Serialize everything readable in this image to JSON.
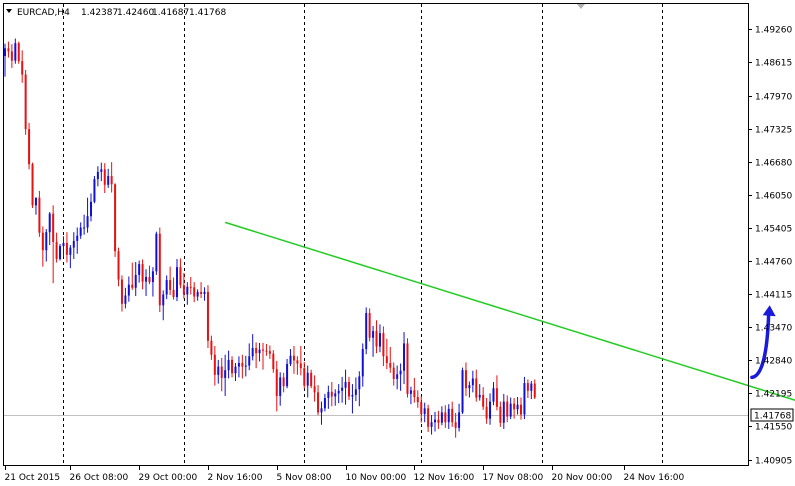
{
  "header": {
    "symbol": "EURCAD,H4",
    "open": "1.42387",
    "high": "1.42460",
    "low": "1.41687",
    "close": "1.41768"
  },
  "colors": {
    "bull": "#1010d0",
    "bear": "#e81010",
    "trendline": "#22cc22",
    "arrow": "#1a1adc",
    "price_line": "#c0c0c0",
    "grid": "#000000",
    "current_tag_bg": "#ffffff"
  },
  "chart_data": {
    "type": "candlestick",
    "symbol": "EURCAD",
    "timeframe": "H4",
    "ylim": [
      1.4078,
      1.4975
    ],
    "y_ticks": [
      "1.49260",
      "1.48615",
      "1.47970",
      "1.47325",
      "1.46680",
      "1.46050",
      "1.45405",
      "1.44760",
      "1.44115",
      "1.43470",
      "1.42840",
      "1.42195",
      "1.41550",
      "1.40905"
    ],
    "y_tick_values": [
      1.4926,
      1.48615,
      1.4797,
      1.47325,
      1.4668,
      1.4605,
      1.45405,
      1.4476,
      1.44115,
      1.4347,
      1.4284,
      1.42195,
      1.4155,
      1.40905
    ],
    "x_ticks": [
      "21 Oct 2015",
      "26 Oct 08:00",
      "29 Oct 00:00",
      "2 Nov 16:00",
      "5 Nov 08:00",
      "10 Nov 00:00",
      "12 Nov 16:00",
      "17 Nov 08:00",
      "20 Nov 00:00",
      "24 Nov 16:00"
    ],
    "x_tick_bar_index": [
      0,
      19,
      39,
      59,
      79,
      99,
      119,
      139,
      159,
      180
    ],
    "vertical_grid_bar_index": [
      17,
      52,
      87,
      121,
      156,
      191
    ],
    "current_price": 1.41768,
    "current_price_label": "1.41768",
    "bars": [
      [
        1.4874,
        1.4898,
        1.4834,
        1.4889
      ],
      [
        1.4889,
        1.4902,
        1.4871,
        1.4883
      ],
      [
        1.4883,
        1.4897,
        1.4851,
        1.4865
      ],
      [
        1.4865,
        1.4908,
        1.4859,
        1.4899
      ],
      [
        1.4899,
        1.4902,
        1.4859,
        1.4864
      ],
      [
        1.4864,
        1.4885,
        1.4822,
        1.4838
      ],
      [
        1.4838,
        1.4847,
        1.4721,
        1.4732
      ],
      [
        1.4732,
        1.4744,
        1.4654,
        1.4664
      ],
      [
        1.4664,
        1.4667,
        1.4579,
        1.4584
      ],
      [
        1.4584,
        1.4599,
        1.4566,
        1.4599
      ],
      [
        1.4599,
        1.4612,
        1.4523,
        1.4531
      ],
      [
        1.4531,
        1.4543,
        1.4465,
        1.4497
      ],
      [
        1.4497,
        1.4538,
        1.4475,
        1.4532
      ],
      [
        1.4532,
        1.4571,
        1.4507,
        1.4568
      ],
      [
        1.4568,
        1.4584,
        1.4433,
        1.4513
      ],
      [
        1.4513,
        1.4531,
        1.4473,
        1.448
      ],
      [
        1.448,
        1.4509,
        1.4477,
        1.4505
      ],
      [
        1.4505,
        1.4524,
        1.4484,
        1.4511
      ],
      [
        1.4511,
        1.4532,
        1.4473,
        1.4488
      ],
      [
        1.4488,
        1.4507,
        1.4462,
        1.4502
      ],
      [
        1.4502,
        1.4532,
        1.448,
        1.4515
      ],
      [
        1.4515,
        1.4541,
        1.449,
        1.4525
      ],
      [
        1.4525,
        1.4551,
        1.4519,
        1.4541
      ],
      [
        1.4541,
        1.4566,
        1.4527,
        1.4541
      ],
      [
        1.4541,
        1.4599,
        1.4531,
        1.4563
      ],
      [
        1.4563,
        1.4607,
        1.4553,
        1.4591
      ],
      [
        1.4591,
        1.4641,
        1.4588,
        1.4635
      ],
      [
        1.4635,
        1.466,
        1.4621,
        1.4649
      ],
      [
        1.4649,
        1.4667,
        1.4631,
        1.4654
      ],
      [
        1.4654,
        1.4666,
        1.4608,
        1.4624
      ],
      [
        1.4624,
        1.4655,
        1.4618,
        1.4641
      ],
      [
        1.4641,
        1.4668,
        1.4609,
        1.4625
      ],
      [
        1.4625,
        1.4627,
        1.4484,
        1.4495
      ],
      [
        1.4495,
        1.4502,
        1.4427,
        1.444
      ],
      [
        1.444,
        1.4448,
        1.4378,
        1.4393
      ],
      [
        1.4393,
        1.4424,
        1.4384,
        1.4409
      ],
      [
        1.4409,
        1.4446,
        1.4397,
        1.443
      ],
      [
        1.443,
        1.4473,
        1.442,
        1.4424
      ],
      [
        1.4424,
        1.4474,
        1.4408,
        1.4449
      ],
      [
        1.4449,
        1.4477,
        1.4434,
        1.447
      ],
      [
        1.447,
        1.4479,
        1.4421,
        1.4436
      ],
      [
        1.4436,
        1.446,
        1.4408,
        1.4445
      ],
      [
        1.4445,
        1.4467,
        1.4431,
        1.4435
      ],
      [
        1.4435,
        1.4464,
        1.4407,
        1.4456
      ],
      [
        1.4456,
        1.4533,
        1.4449,
        1.4529
      ],
      [
        1.4529,
        1.4541,
        1.4377,
        1.439
      ],
      [
        1.439,
        1.4419,
        1.4361,
        1.4411
      ],
      [
        1.4411,
        1.4448,
        1.4402,
        1.4439
      ],
      [
        1.4439,
        1.4465,
        1.441,
        1.442
      ],
      [
        1.442,
        1.4444,
        1.4401,
        1.4406
      ],
      [
        1.4406,
        1.448,
        1.4398,
        1.4464
      ],
      [
        1.4464,
        1.4481,
        1.4423,
        1.4429
      ],
      [
        1.4429,
        1.4453,
        1.4403,
        1.4411
      ],
      [
        1.4411,
        1.4435,
        1.4391,
        1.4426
      ],
      [
        1.4426,
        1.4445,
        1.4411,
        1.4425
      ],
      [
        1.4425,
        1.4435,
        1.4396,
        1.4407
      ],
      [
        1.4407,
        1.4421,
        1.4399,
        1.4416
      ],
      [
        1.4416,
        1.4435,
        1.4404,
        1.4412
      ],
      [
        1.4412,
        1.4425,
        1.4399,
        1.4416
      ],
      [
        1.4416,
        1.4429,
        1.4307,
        1.4321
      ],
      [
        1.4321,
        1.4331,
        1.4284,
        1.4294
      ],
      [
        1.4294,
        1.4311,
        1.4234,
        1.4255
      ],
      [
        1.4255,
        1.4284,
        1.4238,
        1.4271
      ],
      [
        1.4271,
        1.4288,
        1.4223,
        1.4249
      ],
      [
        1.4249,
        1.4294,
        1.4214,
        1.4264
      ],
      [
        1.4264,
        1.4302,
        1.4248,
        1.4284
      ],
      [
        1.4284,
        1.4291,
        1.425,
        1.4258
      ],
      [
        1.4258,
        1.4278,
        1.4243,
        1.4271
      ],
      [
        1.4271,
        1.4291,
        1.425,
        1.4278
      ],
      [
        1.4278,
        1.4294,
        1.4248,
        1.4271
      ],
      [
        1.4271,
        1.4292,
        1.4252,
        1.4273
      ],
      [
        1.4273,
        1.4316,
        1.4264,
        1.4291
      ],
      [
        1.4291,
        1.4334,
        1.4283,
        1.4307
      ],
      [
        1.4307,
        1.4318,
        1.4268,
        1.4297
      ],
      [
        1.4297,
        1.4317,
        1.4281,
        1.4304
      ],
      [
        1.4304,
        1.4317,
        1.4265,
        1.4302
      ],
      [
        1.4302,
        1.4315,
        1.4292,
        1.4301
      ],
      [
        1.4301,
        1.4312,
        1.4286,
        1.4296
      ],
      [
        1.4296,
        1.4303,
        1.4259,
        1.4266
      ],
      [
        1.4266,
        1.4282,
        1.4184,
        1.4214
      ],
      [
        1.4214,
        1.426,
        1.4195,
        1.425
      ],
      [
        1.425,
        1.4259,
        1.4221,
        1.4233
      ],
      [
        1.4233,
        1.4286,
        1.4229,
        1.4276
      ],
      [
        1.4276,
        1.4305,
        1.4272,
        1.4292
      ],
      [
        1.4292,
        1.4311,
        1.4257,
        1.4283
      ],
      [
        1.4283,
        1.4291,
        1.4255,
        1.4277
      ],
      [
        1.4277,
        1.4311,
        1.4254,
        1.4268
      ],
      [
        1.4268,
        1.428,
        1.4228,
        1.4234
      ],
      [
        1.4234,
        1.4273,
        1.4211,
        1.4259
      ],
      [
        1.4259,
        1.4265,
        1.4229,
        1.4233
      ],
      [
        1.4233,
        1.4254,
        1.4203,
        1.4221
      ],
      [
        1.4221,
        1.4235,
        1.4177,
        1.4182
      ],
      [
        1.4182,
        1.4203,
        1.4158,
        1.419
      ],
      [
        1.419,
        1.4218,
        1.4184,
        1.421
      ],
      [
        1.421,
        1.4234,
        1.4189,
        1.4222
      ],
      [
        1.4222,
        1.4241,
        1.4194,
        1.4213
      ],
      [
        1.4213,
        1.4227,
        1.4195,
        1.4219
      ],
      [
        1.4219,
        1.4237,
        1.42,
        1.4224
      ],
      [
        1.4224,
        1.4251,
        1.4201,
        1.423
      ],
      [
        1.423,
        1.4265,
        1.4197,
        1.4241
      ],
      [
        1.4241,
        1.4251,
        1.4206,
        1.4213
      ],
      [
        1.4213,
        1.4237,
        1.418,
        1.4216
      ],
      [
        1.4216,
        1.425,
        1.4204,
        1.4227
      ],
      [
        1.4227,
        1.4262,
        1.4194,
        1.4252
      ],
      [
        1.4252,
        1.4316,
        1.4232,
        1.4305
      ],
      [
        1.4305,
        1.4386,
        1.4295,
        1.4375
      ],
      [
        1.4375,
        1.4384,
        1.432,
        1.4327
      ],
      [
        1.4327,
        1.435,
        1.429,
        1.434
      ],
      [
        1.434,
        1.4361,
        1.4297,
        1.431
      ],
      [
        1.431,
        1.4353,
        1.4299,
        1.4336
      ],
      [
        1.4336,
        1.4349,
        1.4272,
        1.4291
      ],
      [
        1.4291,
        1.4325,
        1.4266,
        1.4278
      ],
      [
        1.4278,
        1.4309,
        1.4259,
        1.4269
      ],
      [
        1.4269,
        1.4279,
        1.4234,
        1.4247
      ],
      [
        1.4247,
        1.4273,
        1.4227,
        1.4256
      ],
      [
        1.4256,
        1.4277,
        1.4224,
        1.4263
      ],
      [
        1.4263,
        1.4338,
        1.4237,
        1.4316
      ],
      [
        1.4316,
        1.4326,
        1.4211,
        1.4218
      ],
      [
        1.4218,
        1.4232,
        1.4198,
        1.4225
      ],
      [
        1.4225,
        1.4249,
        1.4201,
        1.4212
      ],
      [
        1.4212,
        1.4225,
        1.4191,
        1.4202
      ],
      [
        1.4202,
        1.4213,
        1.4162,
        1.4179
      ],
      [
        1.4179,
        1.4201,
        1.4163,
        1.419
      ],
      [
        1.419,
        1.4197,
        1.4144,
        1.4154
      ],
      [
        1.4154,
        1.4177,
        1.4139,
        1.4163
      ],
      [
        1.4163,
        1.4183,
        1.4145,
        1.4168
      ],
      [
        1.4168,
        1.4185,
        1.415,
        1.4162
      ],
      [
        1.4162,
        1.4194,
        1.4157,
        1.4182
      ],
      [
        1.4182,
        1.4196,
        1.4152,
        1.4163
      ],
      [
        1.4163,
        1.4198,
        1.415,
        1.4189
      ],
      [
        1.4189,
        1.4203,
        1.4154,
        1.4163
      ],
      [
        1.4163,
        1.4181,
        1.4133,
        1.4152
      ],
      [
        1.4152,
        1.4199,
        1.4145,
        1.4182
      ],
      [
        1.4182,
        1.4269,
        1.4179,
        1.4264
      ],
      [
        1.4264,
        1.4279,
        1.4214,
        1.4229
      ],
      [
        1.4229,
        1.4242,
        1.4211,
        1.4235
      ],
      [
        1.4235,
        1.4263,
        1.4221,
        1.4248
      ],
      [
        1.4248,
        1.4265,
        1.4203,
        1.4211
      ],
      [
        1.4211,
        1.4237,
        1.4205,
        1.4216
      ],
      [
        1.4216,
        1.4231,
        1.4187,
        1.4193
      ],
      [
        1.4193,
        1.421,
        1.416,
        1.417
      ],
      [
        1.417,
        1.4219,
        1.4158,
        1.4203
      ],
      [
        1.4203,
        1.4241,
        1.4196,
        1.4229
      ],
      [
        1.4229,
        1.4254,
        1.4186,
        1.4193
      ],
      [
        1.4193,
        1.4203,
        1.4154,
        1.4162
      ],
      [
        1.4162,
        1.4218,
        1.415,
        1.4203
      ],
      [
        1.4203,
        1.4215,
        1.4163,
        1.4174
      ],
      [
        1.4174,
        1.4211,
        1.4169,
        1.4199
      ],
      [
        1.4199,
        1.421,
        1.417,
        1.4188
      ],
      [
        1.4188,
        1.4212,
        1.4178,
        1.4197
      ],
      [
        1.4197,
        1.4211,
        1.4168,
        1.4178
      ],
      [
        1.4178,
        1.4251,
        1.4169,
        1.4239
      ],
      [
        1.4239,
        1.4246,
        1.421,
        1.4224
      ],
      [
        1.4224,
        1.4243,
        1.4208,
        1.4238
      ],
      [
        1.4238,
        1.4246,
        1.4208,
        1.4211
      ]
    ]
  },
  "annotations": {
    "trendline": {
      "x1_bar": 64,
      "y1": 1.4551,
      "x2_bar": 267,
      "y2": 1.4128
    },
    "arrow": {
      "start_bar": 218,
      "start_price": 1.425,
      "end_bar": 222,
      "end_price": 1.439,
      "direction": "up"
    }
  }
}
